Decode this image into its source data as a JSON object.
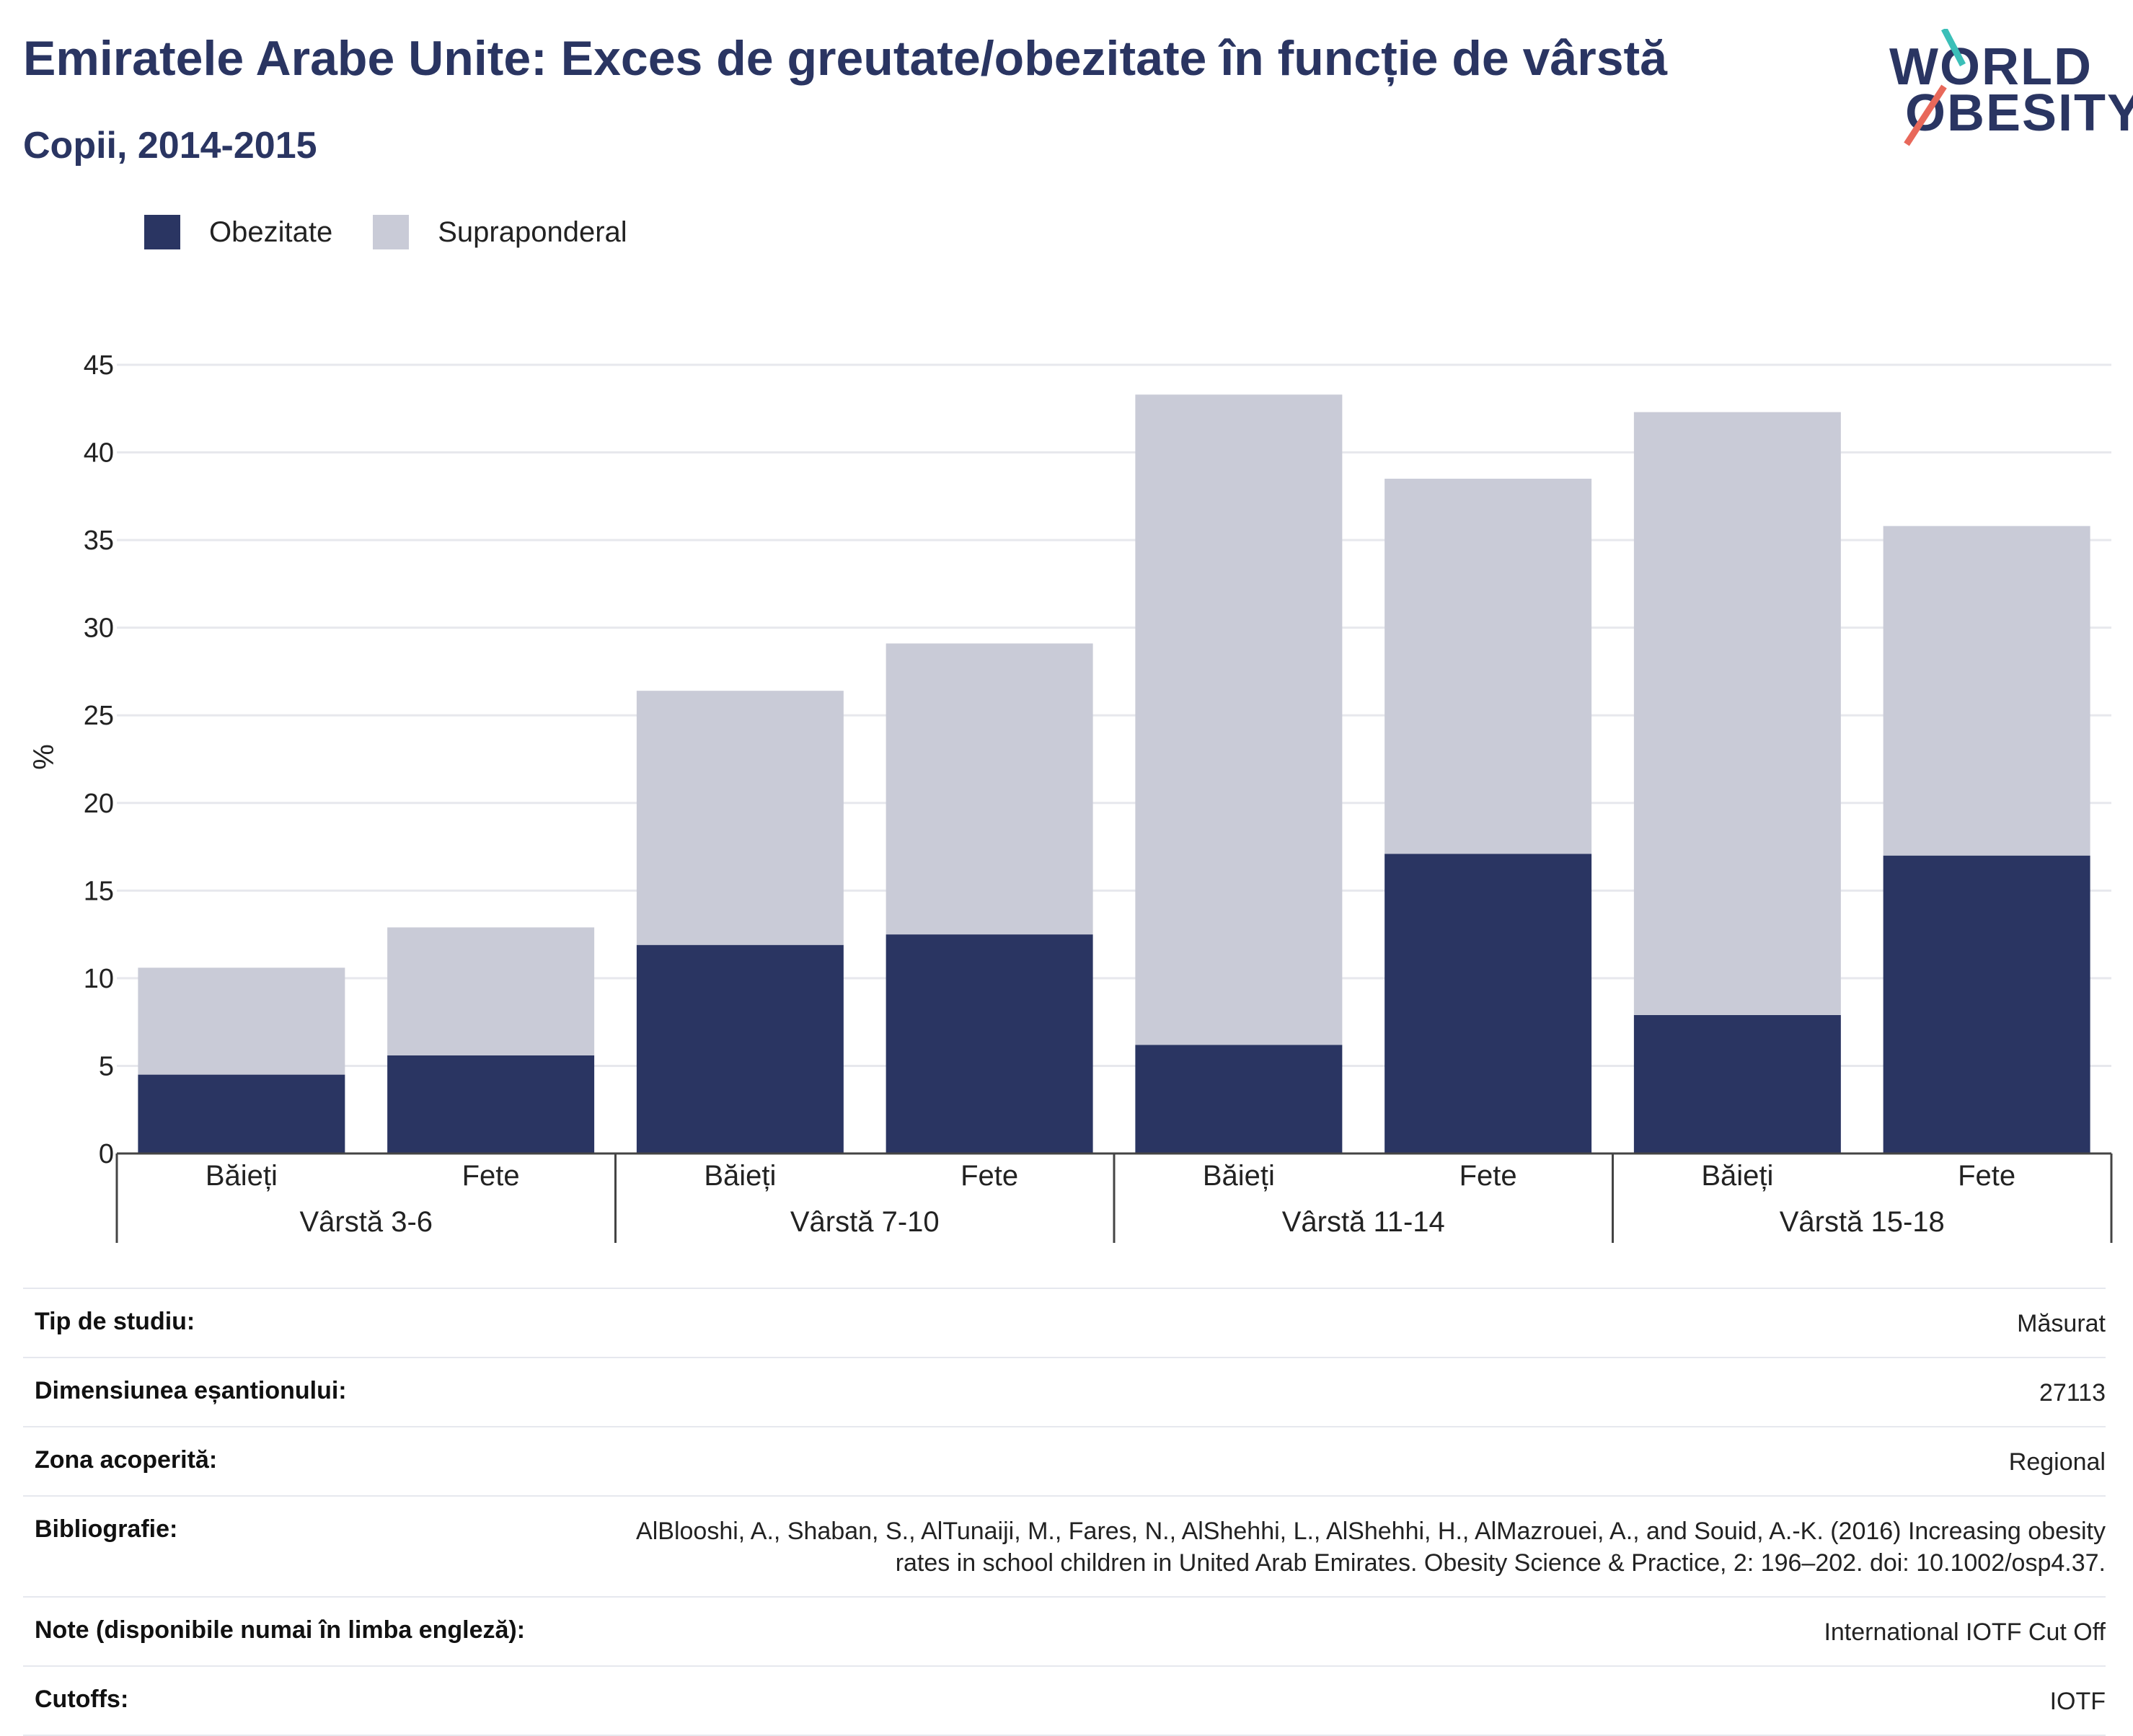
{
  "header": {
    "title": "Emiratele Arabe Unite: Exces de greutate/obezitate în funcție de vârstă",
    "subtitle": "Copii, 2014-2015"
  },
  "logo": {
    "line1": "WORLD",
    "line2": "OBESITY",
    "accent_colors": [
      "#3bbfb8",
      "#e8685a"
    ]
  },
  "legend": {
    "items": [
      {
        "label": "Obezitate",
        "color": "#2a3562"
      },
      {
        "label": "Supraponderal",
        "color": "#c9cbd7"
      }
    ]
  },
  "chart_data": {
    "type": "bar",
    "stacked": true,
    "ylabel": "%",
    "ylim": [
      0,
      45
    ],
    "yticks": [
      0,
      5,
      10,
      15,
      20,
      25,
      30,
      35,
      40,
      45
    ],
    "grid": true,
    "legend_position": "top-left",
    "groups": [
      {
        "label": "Vârstă 3-6",
        "categories": [
          "Băieți",
          "Fete"
        ]
      },
      {
        "label": "Vârstă 7-10",
        "categories": [
          "Băieți",
          "Fete"
        ]
      },
      {
        "label": "Vârstă 11-14",
        "categories": [
          "Băieți",
          "Fete"
        ]
      },
      {
        "label": "Vârstă 15-18",
        "categories": [
          "Băieți",
          "Fete"
        ]
      }
    ],
    "series": [
      {
        "name": "Obezitate",
        "color": "#2a3562",
        "values": [
          4.5,
          5.6,
          11.9,
          12.5,
          6.2,
          17.1,
          7.9,
          17.0
        ]
      },
      {
        "name": "Supraponderal",
        "color": "#c9cbd7",
        "values": [
          6.1,
          7.3,
          14.5,
          16.6,
          37.1,
          21.4,
          34.4,
          18.8
        ]
      }
    ]
  },
  "meta": {
    "rows": [
      {
        "key": "Tip de studiu:",
        "value": "Măsurat"
      },
      {
        "key": "Dimensiunea eșantionului:",
        "value": "27113"
      },
      {
        "key": "Zona acoperită:",
        "value": "Regional"
      },
      {
        "key": "Bibliografie:",
        "value": "AlBlooshi, A., Shaban, S., AlTunaiji, M., Fares, N., AlShehhi, L., AlShehhi, H., AlMazrouei, A., and Souid, A.-K. (2016) Increasing obesity rates in school children in United Arab Emirates. Obesity Science & Practice, 2: 196–202. doi: 10.1002/osp4.37."
      },
      {
        "key": "Note (disponibile numai în limba engleză):",
        "value": "International IOTF Cut Off"
      },
      {
        "key": "Cutoffs:",
        "value": "IOTF"
      }
    ]
  }
}
